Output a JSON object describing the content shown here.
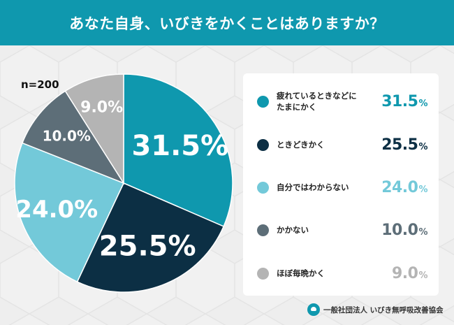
{
  "header": {
    "title": "あなた自身、いびきをかくことはありますか？"
  },
  "sample": {
    "label": "n=200"
  },
  "chart_data": {
    "type": "pie",
    "title": "あなた自身、いびきをかくことはありますか？",
    "unit": "%",
    "slices": [
      {
        "label": "疲れているときなどにたまにかく",
        "value": 31.5,
        "value_text": "31.5",
        "color": "#0f98ae"
      },
      {
        "label": "ときどきかく",
        "value": 25.5,
        "value_text": "25.5",
        "color": "#0c2f44"
      },
      {
        "label": "自分ではわからない",
        "value": 24.0,
        "value_text": "24.0",
        "color": "#73c9d9"
      },
      {
        "label": "かかない",
        "value": 10.0,
        "value_text": "10.0",
        "color": "#5d6e78"
      },
      {
        "label": "ほぼ毎晩かく",
        "value": 9.0,
        "value_text": "9.0",
        "color": "#b4b4b4"
      }
    ]
  },
  "legend": {
    "items": [
      {
        "label": "疲れているときなどに\nたまにかく",
        "value": "31.5",
        "unit": "%",
        "color": "#0f98ae"
      },
      {
        "label": "ときどきかく",
        "value": "25.5",
        "unit": "%",
        "color": "#0c2f44"
      },
      {
        "label": "自分ではわからない",
        "value": "24.0",
        "unit": "%",
        "color": "#73c9d9"
      },
      {
        "label": "かかない",
        "value": "10.0",
        "unit": "%",
        "color": "#5d6e78"
      },
      {
        "label": "ほぼ毎晩かく",
        "value": "9.0",
        "unit": "%",
        "color": "#b4b4b4"
      }
    ]
  },
  "footer": {
    "org": "一般社団法人 いびき無呼吸改善協会",
    "logo_icon": "snore-association-logo-icon"
  }
}
